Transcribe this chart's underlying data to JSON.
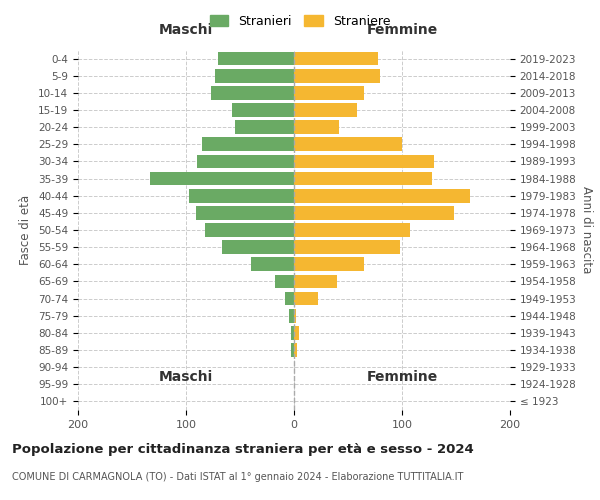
{
  "age_groups": [
    "100+",
    "95-99",
    "90-94",
    "85-89",
    "80-84",
    "75-79",
    "70-74",
    "65-69",
    "60-64",
    "55-59",
    "50-54",
    "45-49",
    "40-44",
    "35-39",
    "30-34",
    "25-29",
    "20-24",
    "15-19",
    "10-14",
    "5-9",
    "0-4"
  ],
  "birth_years": [
    "≤ 1923",
    "1924-1928",
    "1929-1933",
    "1934-1938",
    "1939-1943",
    "1944-1948",
    "1949-1953",
    "1954-1958",
    "1959-1963",
    "1964-1968",
    "1969-1973",
    "1974-1978",
    "1979-1983",
    "1984-1988",
    "1989-1993",
    "1994-1998",
    "1999-2003",
    "2004-2008",
    "2009-2013",
    "2014-2018",
    "2019-2023"
  ],
  "maschi": [
    0,
    0,
    0,
    3,
    3,
    5,
    8,
    18,
    40,
    67,
    82,
    91,
    97,
    133,
    90,
    85,
    55,
    57,
    77,
    73,
    70
  ],
  "femmine": [
    0,
    0,
    0,
    3,
    5,
    2,
    22,
    40,
    65,
    98,
    107,
    148,
    163,
    128,
    130,
    100,
    42,
    58,
    65,
    80,
    78
  ],
  "male_color": "#6aaa64",
  "female_color": "#f5b731",
  "background_color": "#ffffff",
  "grid_color": "#cccccc",
  "title": "Popolazione per cittadinanza straniera per età e sesso - 2024",
  "subtitle": "COMUNE DI CARMAGNOLA (TO) - Dati ISTAT al 1° gennaio 2024 - Elaborazione TUTTITALIA.IT",
  "ylabel_left": "Fasce di età",
  "ylabel_right": "Anni di nascita",
  "xlabel_maschi": "Maschi",
  "xlabel_femmine": "Femmine",
  "legend_maschi": "Stranieri",
  "legend_femmine": "Straniere",
  "xlim": 200,
  "bar_height": 0.8
}
